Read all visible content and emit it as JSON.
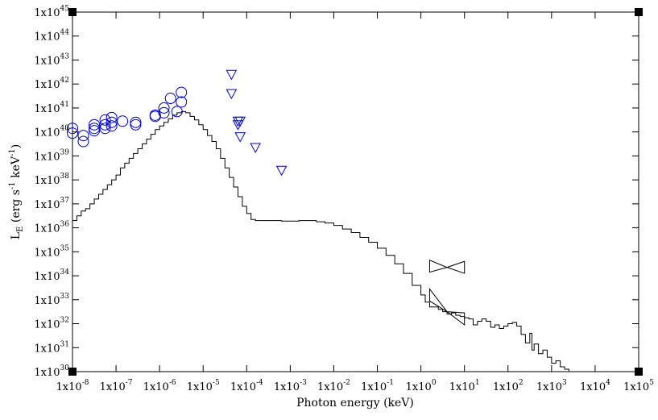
{
  "chart_data": {
    "type": "scatter",
    "title": "",
    "xlabel": "Photon energy (keV)",
    "ylabel_parts": {
      "main": "L",
      "sub": "E",
      "units_open": " (erg s",
      "units_exp1": "-1",
      "units_mid": "  keV",
      "units_exp2": "-1",
      "units_close": ")"
    },
    "x_scale": "log",
    "y_scale": "log",
    "xlim_exp": [
      -8,
      5
    ],
    "ylim_exp": [
      30,
      45
    ],
    "x_tick_exponents": [
      -8,
      -7,
      -6,
      -5,
      -4,
      -3,
      -2,
      -1,
      0,
      1,
      2,
      3,
      4,
      5
    ],
    "y_tick_exponents": [
      30,
      31,
      32,
      33,
      34,
      35,
      36,
      37,
      38,
      39,
      40,
      41,
      42,
      43,
      44,
      45
    ],
    "tick_base": "1x10",
    "colors": {
      "axes": "#000000",
      "observed": "#0000cc",
      "model": "#000000"
    },
    "series": [
      {
        "marker": "circle",
        "log_points": [
          [
            -8.0,
            40.15
          ],
          [
            -8.0,
            39.95
          ],
          [
            -7.75,
            39.85
          ],
          [
            -7.75,
            39.6
          ],
          [
            -7.5,
            40.3
          ],
          [
            -7.5,
            40.15
          ],
          [
            -7.5,
            40.05
          ],
          [
            -7.25,
            40.5
          ],
          [
            -7.25,
            40.3
          ],
          [
            -7.25,
            40.15
          ],
          [
            -7.1,
            40.6
          ],
          [
            -7.1,
            40.4
          ],
          [
            -7.1,
            40.25
          ],
          [
            -6.85,
            40.45
          ],
          [
            -6.55,
            40.4
          ],
          [
            -6.55,
            40.3
          ],
          [
            -6.1,
            40.7
          ],
          [
            -6.1,
            40.65
          ],
          [
            -5.9,
            41.0
          ],
          [
            -5.9,
            40.8
          ],
          [
            -5.75,
            41.4
          ],
          [
            -5.6,
            40.85
          ],
          [
            -5.5,
            41.65
          ],
          [
            -5.5,
            41.25
          ]
        ]
      },
      {
        "marker": "triangle-down",
        "log_points": [
          [
            -4.35,
            42.4
          ],
          [
            -4.35,
            41.6
          ],
          [
            -4.2,
            40.45
          ],
          [
            -4.15,
            40.45
          ],
          [
            -4.2,
            40.3
          ],
          [
            -4.15,
            39.8
          ],
          [
            -3.8,
            39.35
          ],
          [
            -3.2,
            38.4
          ]
        ]
      },
      {
        "type": "bowtie",
        "log_x": [
          0.2,
          1.0
        ],
        "pivot": [
          0.6,
          34.35
        ],
        "log_y_left": [
          34.15,
          34.65
        ],
        "log_y_right": [
          34.1,
          34.6
        ]
      },
      {
        "type": "bowtie",
        "log_x": [
          0.2,
          1.0
        ],
        "pivot": [
          0.6,
          32.5
        ],
        "log_y_left": [
          32.95,
          33.45
        ],
        "log_y_right": [
          31.95,
          32.45
        ]
      },
      {
        "type": "step",
        "log_points": [
          [
            -8.0,
            36.3
          ],
          [
            -7.9,
            36.5
          ],
          [
            -7.8,
            36.7
          ],
          [
            -7.7,
            36.8
          ],
          [
            -7.6,
            37.0
          ],
          [
            -7.5,
            37.2
          ],
          [
            -7.4,
            37.4
          ],
          [
            -7.3,
            37.6
          ],
          [
            -7.2,
            37.8
          ],
          [
            -7.1,
            38.0
          ],
          [
            -7.0,
            38.2
          ],
          [
            -6.9,
            38.5
          ],
          [
            -6.8,
            38.7
          ],
          [
            -6.7,
            38.9
          ],
          [
            -6.6,
            39.1
          ],
          [
            -6.5,
            39.3
          ],
          [
            -6.4,
            39.5
          ],
          [
            -6.3,
            39.7
          ],
          [
            -6.2,
            39.9
          ],
          [
            -6.1,
            40.1
          ],
          [
            -6.0,
            40.25
          ],
          [
            -5.9,
            40.4
          ],
          [
            -5.8,
            40.55
          ],
          [
            -5.7,
            40.7
          ],
          [
            -5.6,
            40.8
          ],
          [
            -5.5,
            40.85
          ],
          [
            -5.4,
            40.8
          ],
          [
            -5.3,
            40.65
          ],
          [
            -5.2,
            40.5
          ],
          [
            -5.1,
            40.3
          ],
          [
            -5.0,
            40.1
          ],
          [
            -4.9,
            39.85
          ],
          [
            -4.8,
            39.6
          ],
          [
            -4.7,
            39.3
          ],
          [
            -4.6,
            38.9
          ],
          [
            -4.5,
            38.5
          ],
          [
            -4.4,
            38.1
          ],
          [
            -4.3,
            37.7
          ],
          [
            -4.2,
            37.3
          ],
          [
            -4.1,
            36.9
          ],
          [
            -4.0,
            36.6
          ],
          [
            -3.9,
            36.35
          ],
          [
            -3.8,
            36.3
          ],
          [
            -3.6,
            36.3
          ],
          [
            -3.4,
            36.3
          ],
          [
            -3.2,
            36.28
          ],
          [
            -3.0,
            36.28
          ],
          [
            -2.8,
            36.3
          ],
          [
            -2.6,
            36.3
          ],
          [
            -2.4,
            36.25
          ],
          [
            -2.2,
            36.2
          ],
          [
            -2.0,
            36.1
          ],
          [
            -1.8,
            35.95
          ],
          [
            -1.6,
            35.8
          ],
          [
            -1.4,
            35.6
          ],
          [
            -1.2,
            35.4
          ],
          [
            -1.0,
            35.15
          ],
          [
            -0.8,
            34.85
          ],
          [
            -0.6,
            34.5
          ],
          [
            -0.4,
            34.1
          ],
          [
            -0.2,
            33.6
          ],
          [
            0.0,
            33.2
          ],
          [
            0.1,
            32.9
          ],
          [
            0.2,
            32.7
          ],
          [
            0.4,
            32.6
          ],
          [
            0.5,
            32.5
          ],
          [
            0.6,
            32.4
          ],
          [
            0.7,
            32.45
          ],
          [
            0.8,
            32.35
          ],
          [
            0.9,
            32.3
          ],
          [
            1.0,
            32.25
          ],
          [
            1.1,
            32.2
          ],
          [
            1.2,
            31.95
          ],
          [
            1.3,
            32.1
          ],
          [
            1.4,
            32.2
          ],
          [
            1.5,
            32.1
          ],
          [
            1.6,
            31.85
          ],
          [
            1.7,
            31.95
          ],
          [
            1.8,
            31.8
          ],
          [
            1.9,
            31.9
          ],
          [
            2.0,
            32.0
          ],
          [
            2.1,
            32.05
          ],
          [
            2.2,
            31.9
          ],
          [
            2.3,
            31.55
          ],
          [
            2.4,
            31.2
          ],
          [
            2.5,
            31.6
          ],
          [
            2.55,
            30.9
          ],
          [
            2.6,
            31.15
          ],
          [
            2.7,
            30.75
          ],
          [
            2.8,
            30.9
          ],
          [
            2.9,
            30.6
          ],
          [
            3.0,
            30.35
          ],
          [
            3.1,
            30.45
          ],
          [
            3.2,
            30.2
          ],
          [
            3.3,
            30.1
          ],
          [
            3.4,
            30.0
          ]
        ]
      }
    ]
  }
}
